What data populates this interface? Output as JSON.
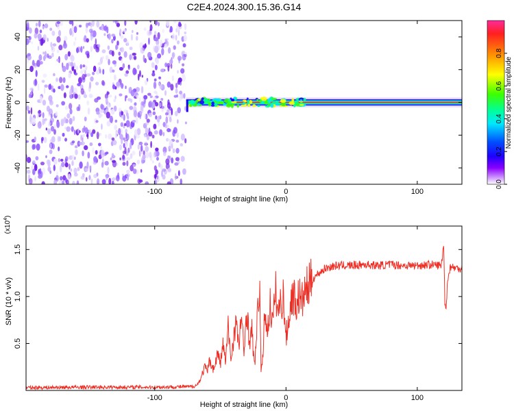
{
  "title": "C2E4.2024.300.15.36.G14",
  "chart_data": [
    {
      "type": "heatmap",
      "xlabel": "Height of straight line (km)",
      "ylabel": "Frequency (Hz)",
      "xlim": [
        -198,
        134
      ],
      "ylim": [
        -50,
        50
      ],
      "x_ticks": [
        -100,
        0,
        100
      ],
      "x_tick_labels": [
        "-100",
        "0",
        "100"
      ],
      "y_ticks": [
        -40,
        -20,
        0,
        20,
        40
      ],
      "y_tick_labels": [
        "-40",
        "-20",
        "0",
        "20",
        "40"
      ],
      "noise_region_x": [
        -198,
        -76
      ],
      "signal_region_x": [
        -76,
        134
      ],
      "signal_center_frequency": 0,
      "colorbar": {
        "label": "Normalized spectral amplitude",
        "range": [
          0,
          1
        ],
        "ticks": [
          0,
          0.2,
          0.4,
          0.6,
          0.8
        ],
        "tick_labels": [
          "0.0",
          "0.2",
          "0.4",
          "0.6",
          "0.8"
        ],
        "colormap": [
          "#ff2a9a",
          "#ff2020",
          "#ff9a00",
          "#ffff00",
          "#3cff00",
          "#00ff9a",
          "#00e8ff",
          "#0050ff",
          "#1e00ff",
          "#8a00ff",
          "#ffffff"
        ]
      },
      "grid": false
    },
    {
      "type": "line",
      "xlabel": "Height of straight line (km)",
      "ylabel": "SNR (10 * v/v)",
      "y_multiplier": "(x10",
      "y_multiplier_exponent": "4",
      "xlim": [
        -198,
        134
      ],
      "ylim": [
        0,
        17500
      ],
      "x_ticks": [
        -100,
        0,
        100
      ],
      "x_tick_labels": [
        "-100",
        "0",
        "100"
      ],
      "y_ticks": [
        5000,
        10000,
        15000
      ],
      "y_tick_labels": [
        "0.5",
        "1.0",
        "1.5"
      ],
      "color": "#ee2e24",
      "series": [
        {
          "x": [
            -198,
            -150,
            -100,
            -72,
            -68,
            -65,
            -62,
            -60,
            -58,
            -55,
            -52,
            -50,
            -48,
            -46,
            -44,
            -42,
            -40,
            -38,
            -36,
            -34,
            -32,
            -30,
            -28,
            -26,
            -24,
            -22,
            -20,
            -19,
            -18,
            -17,
            -16,
            -14,
            -12,
            -10,
            -8,
            -6,
            -4,
            -2,
            0,
            2,
            5,
            8,
            10,
            12,
            15,
            18,
            20,
            25,
            30,
            35,
            40,
            50,
            60,
            70,
            80,
            90,
            100,
            110,
            118,
            119,
            120,
            121,
            122,
            123,
            125,
            130,
            134
          ],
          "y": [
            300,
            350,
            350,
            400,
            550,
            1200,
            2500,
            2000,
            3200,
            2200,
            4000,
            2800,
            5000,
            3000,
            6800,
            3300,
            5500,
            7500,
            4300,
            8300,
            3500,
            9200,
            5200,
            6400,
            2400,
            7000,
            11800,
            1600,
            3000,
            5600,
            8600,
            6200,
            9300,
            7000,
            10700,
            8300,
            9300,
            10000,
            5600,
            7500,
            10400,
            9100,
            10200,
            9400,
            10700,
            11200,
            11800,
            12500,
            13000,
            13200,
            13300,
            13300,
            13400,
            13300,
            13400,
            13300,
            13300,
            13400,
            13300,
            13800,
            16000,
            9500,
            8800,
            11500,
            13200,
            13000,
            13000
          ]
        }
      ],
      "grid": false
    }
  ]
}
